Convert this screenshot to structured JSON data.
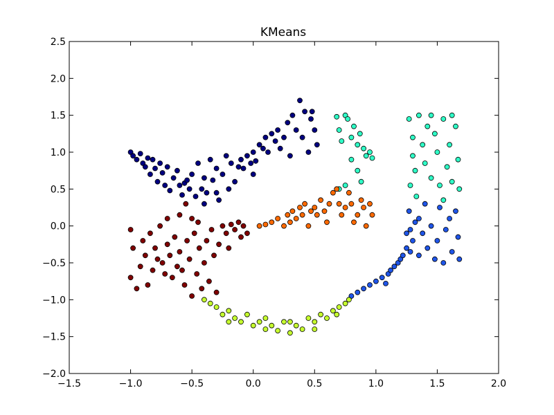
{
  "chart_data": {
    "type": "scatter",
    "title": "KMeans",
    "xlabel": "",
    "ylabel": "",
    "xlim": [
      -1.5,
      2.0
    ],
    "ylim": [
      -2.0,
      2.5
    ],
    "xticks": [
      "−1.5",
      "−1.0",
      "−0.5",
      "0.0",
      "0.5",
      "1.0",
      "1.5",
      "2.0"
    ],
    "yticks": [
      "−2.0",
      "−1.5",
      "−1.0",
      "−0.5",
      "0.0",
      "0.5",
      "1.0",
      "1.5",
      "2.0",
      "2.5"
    ],
    "grid": false,
    "legend": "none",
    "series": [
      {
        "color": "#000080",
        "points": [
          [
            -1.0,
            1.0
          ],
          [
            -0.98,
            0.95
          ],
          [
            -0.95,
            0.9
          ],
          [
            -0.92,
            0.98
          ],
          [
            -0.9,
            0.85
          ],
          [
            -0.88,
            0.8
          ],
          [
            -0.86,
            0.92
          ],
          [
            -0.84,
            0.7
          ],
          [
            -0.82,
            0.9
          ],
          [
            -0.8,
            0.78
          ],
          [
            -0.78,
            0.6
          ],
          [
            -0.76,
            0.85
          ],
          [
            -0.74,
            0.72
          ],
          [
            -0.72,
            0.55
          ],
          [
            -0.7,
            0.8
          ],
          [
            -0.68,
            0.48
          ],
          [
            -0.65,
            0.65
          ],
          [
            -0.62,
            0.75
          ],
          [
            -0.6,
            0.55
          ],
          [
            -0.58,
            0.42
          ],
          [
            -0.56,
            0.58
          ],
          [
            -0.54,
            0.62
          ],
          [
            -0.52,
            0.5
          ],
          [
            -0.5,
            0.7
          ],
          [
            -0.47,
            0.4
          ],
          [
            -0.45,
            0.85
          ],
          [
            -0.42,
            0.5
          ],
          [
            -0.4,
            0.65
          ],
          [
            -0.38,
            0.45
          ],
          [
            -0.35,
            0.9
          ],
          [
            -0.33,
            0.62
          ],
          [
            -0.3,
            0.78
          ],
          [
            -0.28,
            0.35
          ],
          [
            -0.25,
            0.7
          ],
          [
            -0.22,
            0.95
          ],
          [
            -0.2,
            0.5
          ],
          [
            -0.18,
            0.85
          ],
          [
            -0.15,
            0.6
          ],
          [
            -0.12,
            0.8
          ],
          [
            -0.1,
            0.9
          ],
          [
            -0.08,
            0.78
          ],
          [
            -0.05,
            0.95
          ],
          [
            -0.02,
            0.85
          ],
          [
            0.0,
            1.0
          ],
          [
            0.02,
            0.88
          ],
          [
            0.05,
            1.1
          ],
          [
            0.08,
            1.05
          ],
          [
            0.1,
            1.2
          ],
          [
            0.12,
            1.0
          ],
          [
            0.15,
            1.25
          ],
          [
            0.18,
            1.15
          ],
          [
            0.2,
            1.3
          ],
          [
            0.22,
            1.05
          ],
          [
            0.25,
            1.2
          ],
          [
            0.28,
            1.4
          ],
          [
            0.3,
            0.95
          ],
          [
            0.32,
            1.5
          ],
          [
            0.35,
            1.3
          ],
          [
            0.38,
            1.7
          ],
          [
            0.4,
            1.2
          ],
          [
            0.42,
            1.55
          ],
          [
            0.45,
            1.0
          ],
          [
            0.47,
            1.45
          ],
          [
            0.48,
            1.55
          ],
          [
            0.5,
            1.3
          ],
          [
            0.52,
            1.1
          ],
          [
            -0.4,
            0.3
          ],
          [
            -0.3,
            0.45
          ],
          [
            0.0,
            0.7
          ]
        ]
      },
      {
        "color": "#2fffc7",
        "points": [
          [
            0.68,
            1.48
          ],
          [
            0.7,
            1.3
          ],
          [
            0.72,
            1.15
          ],
          [
            0.75,
            1.5
          ],
          [
            0.77,
            1.45
          ],
          [
            0.8,
            1.2
          ],
          [
            0.82,
            1.35
          ],
          [
            0.85,
            1.1
          ],
          [
            0.87,
            1.25
          ],
          [
            0.9,
            1.05
          ],
          [
            0.92,
            0.95
          ],
          [
            0.95,
            1.0
          ],
          [
            0.97,
            0.92
          ],
          [
            0.8,
            0.9
          ],
          [
            0.85,
            0.75
          ],
          [
            0.88,
            0.6
          ],
          [
            0.75,
            0.55
          ],
          [
            0.7,
            0.5
          ],
          [
            1.27,
            1.45
          ],
          [
            1.3,
            1.2
          ],
          [
            1.3,
            0.95
          ],
          [
            1.32,
            0.75
          ],
          [
            1.28,
            0.55
          ],
          [
            1.35,
            1.5
          ],
          [
            1.38,
            1.1
          ],
          [
            1.4,
            0.85
          ],
          [
            1.42,
            1.35
          ],
          [
            1.45,
            0.65
          ],
          [
            1.48,
            1.25
          ],
          [
            1.5,
            1.0
          ],
          [
            1.52,
            0.55
          ],
          [
            1.55,
            1.45
          ],
          [
            1.58,
            0.8
          ],
          [
            1.6,
            1.1
          ],
          [
            1.62,
            0.6
          ],
          [
            1.65,
            1.35
          ],
          [
            1.67,
            0.9
          ],
          [
            1.68,
            0.5
          ],
          [
            1.33,
            0.4
          ],
          [
            1.45,
            1.5
          ],
          [
            1.55,
            0.35
          ],
          [
            1.62,
            1.5
          ]
        ]
      },
      {
        "color": "#1f55e8",
        "points": [
          [
            0.8,
            -0.95
          ],
          [
            0.85,
            -0.9
          ],
          [
            0.9,
            -0.85
          ],
          [
            0.95,
            -0.8
          ],
          [
            1.0,
            -0.75
          ],
          [
            1.05,
            -0.7
          ],
          [
            1.08,
            -0.78
          ],
          [
            1.1,
            -0.65
          ],
          [
            1.12,
            -0.6
          ],
          [
            1.15,
            -0.55
          ],
          [
            1.18,
            -0.5
          ],
          [
            1.2,
            -0.45
          ],
          [
            1.22,
            -0.4
          ],
          [
            1.25,
            -0.3
          ],
          [
            1.25,
            -0.1
          ],
          [
            1.27,
            0.2
          ],
          [
            1.28,
            -0.35
          ],
          [
            1.3,
            -0.2
          ],
          [
            1.32,
            0.05
          ],
          [
            1.35,
            -0.4
          ],
          [
            1.38,
            -0.1
          ],
          [
            1.4,
            0.3
          ],
          [
            1.42,
            -0.3
          ],
          [
            1.45,
            0.0
          ],
          [
            1.48,
            -0.45
          ],
          [
            1.5,
            -0.2
          ],
          [
            1.52,
            0.25
          ],
          [
            1.55,
            -0.5
          ],
          [
            1.57,
            -0.05
          ],
          [
            1.6,
            0.1
          ],
          [
            1.62,
            -0.35
          ],
          [
            1.65,
            0.2
          ],
          [
            1.67,
            -0.15
          ],
          [
            1.68,
            -0.45
          ],
          [
            1.35,
            0.1
          ],
          [
            1.28,
            -0.05
          ]
        ]
      },
      {
        "color": "#c6ff2f",
        "points": [
          [
            -0.4,
            -1.0
          ],
          [
            -0.35,
            -1.05
          ],
          [
            -0.3,
            -1.1
          ],
          [
            -0.25,
            -1.2
          ],
          [
            -0.2,
            -1.15
          ],
          [
            -0.15,
            -1.25
          ],
          [
            -0.1,
            -1.3
          ],
          [
            -0.05,
            -1.2
          ],
          [
            0.0,
            -1.35
          ],
          [
            0.05,
            -1.3
          ],
          [
            0.1,
            -1.4
          ],
          [
            0.15,
            -1.35
          ],
          [
            0.2,
            -1.42
          ],
          [
            0.25,
            -1.3
          ],
          [
            0.3,
            -1.45
          ],
          [
            0.35,
            -1.35
          ],
          [
            0.4,
            -1.4
          ],
          [
            0.45,
            -1.25
          ],
          [
            0.5,
            -1.3
          ],
          [
            0.55,
            -1.2
          ],
          [
            0.6,
            -1.25
          ],
          [
            0.65,
            -1.15
          ],
          [
            0.7,
            -1.1
          ],
          [
            0.75,
            -1.05
          ],
          [
            0.78,
            -1.0
          ],
          [
            -0.2,
            -1.3
          ],
          [
            0.1,
            -1.25
          ],
          [
            0.3,
            -1.3
          ],
          [
            0.5,
            -1.4
          ],
          [
            0.68,
            -1.2
          ]
        ]
      },
      {
        "color": "#ff6a00",
        "points": [
          [
            0.05,
            0.0
          ],
          [
            0.1,
            0.02
          ],
          [
            0.15,
            0.05
          ],
          [
            0.2,
            0.1
          ],
          [
            0.25,
            0.0
          ],
          [
            0.28,
            0.15
          ],
          [
            0.3,
            0.05
          ],
          [
            0.32,
            0.2
          ],
          [
            0.35,
            0.1
          ],
          [
            0.38,
            0.25
          ],
          [
            0.4,
            0.15
          ],
          [
            0.42,
            0.3
          ],
          [
            0.45,
            0.0
          ],
          [
            0.47,
            0.2
          ],
          [
            0.5,
            0.25
          ],
          [
            0.52,
            0.15
          ],
          [
            0.55,
            0.35
          ],
          [
            0.58,
            0.2
          ],
          [
            0.6,
            0.05
          ],
          [
            0.62,
            0.3
          ],
          [
            0.65,
            0.45
          ],
          [
            0.68,
            0.5
          ],
          [
            0.7,
            0.3
          ],
          [
            0.72,
            0.15
          ],
          [
            0.75,
            0.25
          ],
          [
            0.78,
            0.45
          ],
          [
            0.8,
            0.3
          ],
          [
            0.82,
            0.05
          ],
          [
            0.85,
            0.15
          ],
          [
            0.88,
            0.35
          ],
          [
            0.9,
            0.25
          ],
          [
            0.92,
            0.0
          ],
          [
            0.95,
            0.3
          ],
          [
            0.97,
            0.15
          ]
        ]
      },
      {
        "color": "#800000",
        "points": [
          [
            -1.0,
            -0.05
          ],
          [
            -0.98,
            -0.3
          ],
          [
            -1.0,
            -0.7
          ],
          [
            -0.95,
            -0.85
          ],
          [
            -0.92,
            -0.55
          ],
          [
            -0.9,
            -0.2
          ],
          [
            -0.88,
            -0.4
          ],
          [
            -0.86,
            -0.8
          ],
          [
            -0.84,
            -0.1
          ],
          [
            -0.82,
            -0.6
          ],
          [
            -0.8,
            -0.3
          ],
          [
            -0.78,
            -0.45
          ],
          [
            -0.76,
            0.0
          ],
          [
            -0.74,
            -0.5
          ],
          [
            -0.72,
            -0.65
          ],
          [
            -0.7,
            -0.25
          ],
          [
            -0.68,
            -0.4
          ],
          [
            -0.66,
            -0.7
          ],
          [
            -0.64,
            -0.15
          ],
          [
            -0.62,
            -0.55
          ],
          [
            -0.6,
            -0.35
          ],
          [
            -0.58,
            -0.6
          ],
          [
            -0.56,
            -0.8
          ],
          [
            -0.54,
            -0.2
          ],
          [
            -0.52,
            -0.45
          ],
          [
            -0.5,
            -0.95
          ],
          [
            -0.48,
            -0.1
          ],
          [
            -0.46,
            -0.65
          ],
          [
            -0.44,
            -0.3
          ],
          [
            -0.42,
            -0.85
          ],
          [
            -0.4,
            -0.5
          ],
          [
            -0.38,
            -0.2
          ],
          [
            -0.36,
            -0.75
          ],
          [
            -0.34,
            -0.05
          ],
          [
            -0.32,
            -0.4
          ],
          [
            -0.3,
            -0.9
          ],
          [
            -0.28,
            -0.25
          ],
          [
            -0.25,
            0.0
          ],
          [
            -0.22,
            -0.1
          ],
          [
            -0.2,
            -0.3
          ],
          [
            -0.18,
            0.02
          ],
          [
            -0.15,
            -0.05
          ],
          [
            -0.12,
            0.05
          ],
          [
            -0.1,
            -0.15
          ],
          [
            -0.08,
            0.0
          ],
          [
            -0.05,
            -0.1
          ],
          [
            -0.6,
            0.15
          ],
          [
            -0.55,
            0.3
          ],
          [
            -0.5,
            0.1
          ],
          [
            -0.45,
            0.05
          ],
          [
            -0.7,
            0.1
          ]
        ]
      }
    ]
  }
}
